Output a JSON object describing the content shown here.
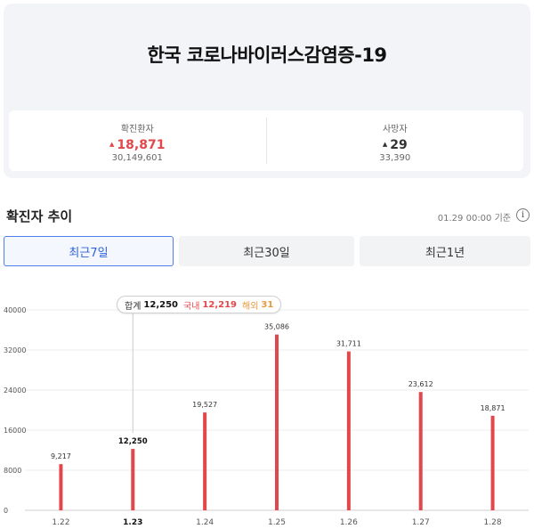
{
  "header": {
    "title": "한국 코로나바이러스감염증-19"
  },
  "stats": {
    "confirmed": {
      "label": "확진환자",
      "change": "18,871",
      "total": "30,149,601",
      "color": "#e2474b"
    },
    "deaths": {
      "label": "사망자",
      "change": "29",
      "total": "33,390",
      "color": "#333333"
    }
  },
  "trend": {
    "title": "확진자 추이",
    "timestamp": "01.29 00:00 기준",
    "info_icon": "info-icon"
  },
  "tabs": [
    {
      "label": "최근7일",
      "active": true
    },
    {
      "label": "최근30일",
      "active": false
    },
    {
      "label": "최근1년",
      "active": false
    }
  ],
  "tooltip": {
    "total_label": "합계",
    "total_value": "12,250",
    "domestic_label": "국내",
    "domestic_value": "12,219",
    "overseas_label": "해외",
    "overseas_value": "31"
  },
  "chart_data": {
    "type": "bar",
    "categories": [
      "1.22",
      "1.23",
      "1.24",
      "1.25",
      "1.26",
      "1.27",
      "1.28"
    ],
    "values": [
      9217,
      12250,
      19527,
      35086,
      31711,
      23612,
      18871
    ],
    "value_labels": [
      "9,217",
      "12,250",
      "19,527",
      "35,086",
      "31,711",
      "23,612",
      "18,871"
    ],
    "selected_index": 1,
    "yticks": [
      0,
      8000,
      16000,
      24000,
      32000,
      40000
    ],
    "ylim": [
      0,
      40000
    ],
    "grid": true,
    "bar_color": "#e2474b"
  }
}
